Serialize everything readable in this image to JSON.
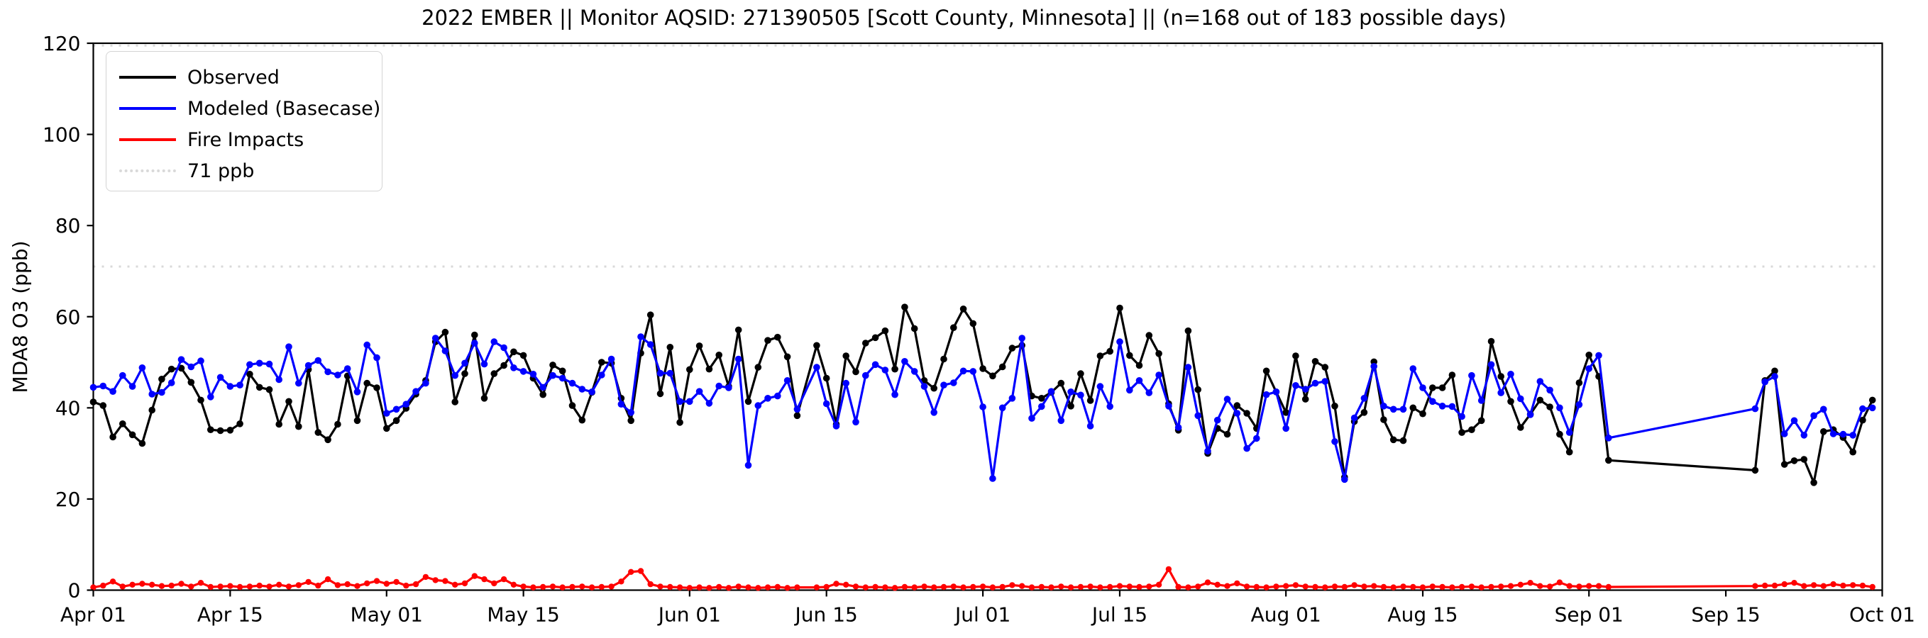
{
  "header": {
    "title": "2022 EMBER || Monitor AQSID: 271390505 [Scott County, Minnesota] || (n=168 out of 183 possible days)"
  },
  "chart_data": {
    "type": "line",
    "title": "2022 EMBER || Monitor AQSID: 271390505 [Scott County, Minnesota] || (n=168 out of 183 possible days)",
    "ylabel": "MDA8 O3 (ppb)",
    "ylim": [
      0,
      120
    ],
    "xlim_days": [
      0,
      183
    ],
    "grid": false,
    "legend_position": "upper-left",
    "note": "n=168 out of 183 possible days",
    "y_ticks": [
      0,
      20,
      40,
      60,
      80,
      100,
      120
    ],
    "x_ticks": [
      {
        "label": "Apr 01",
        "day": 0
      },
      {
        "label": "Apr 15",
        "day": 14
      },
      {
        "label": "May 01",
        "day": 30
      },
      {
        "label": "May 15",
        "day": 44
      },
      {
        "label": "Jun 01",
        "day": 61
      },
      {
        "label": "Jun 15",
        "day": 75
      },
      {
        "label": "Jul 01",
        "day": 91
      },
      {
        "label": "Jul 15",
        "day": 105
      },
      {
        "label": "Aug 01",
        "day": 122
      },
      {
        "label": "Aug 15",
        "day": 136
      },
      {
        "label": "Sep 01",
        "day": 153
      },
      {
        "label": "Sep 15",
        "day": 167
      },
      {
        "label": "Oct 01",
        "day": 183
      }
    ],
    "ref_lines": [
      {
        "value": 71,
        "label": "71 ppb",
        "color": "#d9d9d9",
        "style": "dotted"
      },
      {
        "value": 119.5,
        "label": "",
        "color": "#d9d9d9",
        "style": "dotted"
      }
    ],
    "legend": [
      {
        "label": "Observed",
        "color": "#000000",
        "style": "solid"
      },
      {
        "label": "Modeled (Basecase)",
        "color": "#0000ff",
        "style": "solid"
      },
      {
        "label": "Fire Impacts",
        "color": "#ff0000",
        "style": "solid"
      },
      {
        "label": "71 ppb",
        "color": "#d9d9d9",
        "style": "dotted"
      }
    ],
    "series": [
      {
        "name": "Observed",
        "color": "#000000",
        "values": [
          41.3,
          40.5,
          33.6,
          36.5,
          34.1,
          32.2,
          39.5,
          46.3,
          48.5,
          48.7,
          45.6,
          41.7,
          35.2,
          35,
          35.1,
          36.5,
          47.4,
          44.5,
          44,
          36.4,
          41.4,
          35.9,
          48.4,
          34.6,
          33,
          36.4,
          47,
          37.2,
          45.4,
          44.4,
          35.5,
          37.2,
          39.9,
          43,
          46,
          54.5,
          56.6,
          41.3,
          47.5,
          56,
          42.1,
          47.5,
          49.3,
          52.3,
          51.5,
          46.5,
          42.9,
          49.4,
          48.1,
          40.5,
          37.3,
          43.4,
          50,
          49.8,
          42.1,
          37.2,
          52,
          60.4,
          43.1,
          53.3,
          36.8,
          48.4,
          53.6,
          48.5,
          51.6,
          44.7,
          57.1,
          41.4,
          48.9,
          54.8,
          55.5,
          51.2,
          38.3,
          null,
          53.7,
          46.5,
          36.4,
          51.4,
          47.9,
          54.2,
          55.4,
          56.9,
          48.5,
          62.1,
          57.4,
          46,
          44.3,
          50.7,
          57.6,
          61.7,
          58.5,
          48.6,
          47,
          49,
          53.1,
          53.7,
          42.6,
          42.1,
          43.4,
          45.4,
          40.4,
          47.5,
          41.6,
          51.4,
          52.4,
          61.9,
          51.5,
          49.3,
          55.9,
          51.9,
          40.9,
          35.1,
          56.9,
          44,
          30,
          35.5,
          34.2,
          40.5,
          38.8,
          35.5,
          48.1,
          43.5,
          39,
          51.4,
          41.9,
          50.2,
          48.9,
          40.4,
          24.8,
          37,
          39,
          50.1,
          37.4,
          33,
          32.8,
          40,
          38.7,
          44.4,
          44.4,
          47.2,
          34.6,
          35.2,
          37.2,
          54.6,
          46.9,
          41.4,
          35.7,
          38.6,
          41.7,
          40.2,
          34.2,
          30.3,
          45.5,
          51.6,
          46.9,
          28.5,
          null,
          null,
          null,
          null,
          null,
          null,
          null,
          null,
          null,
          null,
          null,
          null,
          null,
          null,
          26.3,
          46,
          48.1,
          27.6,
          28.4,
          28.7,
          23.6,
          34.8,
          35.2,
          33.5,
          30.3,
          37.3,
          41.7
        ]
      },
      {
        "name": "Modeled (Basecase)",
        "color": "#0000ff",
        "values": [
          44.5,
          44.8,
          43.6,
          47.1,
          44.7,
          48.8,
          43,
          43.4,
          45.5,
          50.6,
          49,
          50.3,
          42.4,
          46.7,
          44.7,
          45,
          49.5,
          49.8,
          49.6,
          46.2,
          53.4,
          45.4,
          49.3,
          50.4,
          47.9,
          47.2,
          48.6,
          43.5,
          53.8,
          51,
          38.8,
          39.7,
          40.8,
          43.6,
          45.4,
          55.3,
          52.5,
          47.1,
          49.8,
          54.2,
          49.6,
          54.5,
          53.2,
          48.8,
          48,
          47.4,
          44.5,
          47.1,
          46.5,
          45.4,
          44.1,
          43.5,
          47.2,
          50.7,
          40.8,
          39,
          55.6,
          53.9,
          47.6,
          47.6,
          41.4,
          41.4,
          43.6,
          41,
          44.8,
          44.4,
          50.7,
          27.4,
          40.5,
          42.1,
          42.6,
          46,
          39.7,
          null,
          48.9,
          40.9,
          36,
          45.4,
          36.9,
          47.1,
          49.5,
          48.3,
          42.9,
          50.2,
          48,
          44.7,
          39,
          45,
          45.5,
          48.1,
          48,
          40.2,
          24.5,
          40,
          42.1,
          55.3,
          37.7,
          40.3,
          43.6,
          37.2,
          43.5,
          42.8,
          36,
          44.7,
          40.3,
          54.5,
          43.9,
          46,
          43.3,
          47.2,
          40.4,
          35.7,
          48.9,
          38.3,
          30.5,
          37.3,
          41.9,
          38.8,
          31.1,
          33.3,
          42.9,
          43.5,
          35.5,
          44.9,
          44.1,
          45.4,
          45.8,
          32.6,
          24.3,
          37.8,
          42.1,
          49.1,
          40.4,
          39.7,
          39.7,
          48.6,
          44.4,
          41.4,
          40.4,
          40.3,
          38.1,
          47.1,
          41.6,
          49.5,
          43.3,
          47.4,
          42,
          38.5,
          45.8,
          43.9,
          40,
          34.6,
          40.7,
          48.6,
          51.5,
          33.4,
          null,
          null,
          null,
          null,
          null,
          null,
          null,
          null,
          null,
          null,
          null,
          null,
          null,
          null,
          39.8,
          45.7,
          46.9,
          34.3,
          37.2,
          34,
          38.3,
          39.7,
          34.3,
          34.2,
          34,
          39.8,
          40
        ]
      },
      {
        "name": "Fire Impacts",
        "color": "#ff0000",
        "values": [
          0.6,
          1,
          1.9,
          0.8,
          1.2,
          1.4,
          1.2,
          0.9,
          1,
          1.4,
          0.8,
          1.6,
          0.7,
          0.8,
          0.9,
          0.7,
          0.8,
          1,
          0.8,
          1.2,
          0.8,
          1.1,
          1.8,
          1,
          2.4,
          1.1,
          1.3,
          0.9,
          1.5,
          2,
          1.4,
          1.8,
          1,
          1.3,
          2.9,
          2.2,
          2,
          1.2,
          1.5,
          3.1,
          2.4,
          1.5,
          2.4,
          1.2,
          0.8,
          0.6,
          0.7,
          0.8,
          0.6,
          0.7,
          0.8,
          0.6,
          0.7,
          0.8,
          1.9,
          4,
          4.2,
          1.3,
          0.8,
          0.7,
          0.6,
          0.5,
          0.6,
          0.5,
          0.7,
          0.5,
          0.8,
          0.6,
          0.5,
          0.6,
          0.7,
          0.5,
          0.6,
          null,
          0.6,
          0.7,
          1.4,
          1.2,
          0.8,
          0.6,
          0.7,
          0.6,
          0.5,
          0.7,
          0.6,
          0.8,
          0.6,
          0.7,
          0.8,
          0.6,
          0.7,
          0.8,
          0.6,
          0.7,
          1.1,
          0.9,
          0.6,
          0.7,
          0.6,
          0.8,
          0.6,
          0.7,
          0.8,
          0.6,
          0.7,
          0.9,
          0.8,
          0.7,
          0.8,
          1.2,
          4.6,
          0.7,
          0.6,
          0.8,
          1.7,
          1.2,
          0.9,
          1.5,
          0.8,
          0.7,
          0.6,
          0.8,
          0.9,
          1.1,
          0.8,
          0.7,
          0.6,
          0.8,
          0.7,
          1.1,
          0.8,
          0.9,
          0.7,
          0.6,
          0.8,
          0.7,
          0.6,
          0.8,
          0.7,
          0.6,
          0.7,
          0.8,
          0.6,
          0.7,
          0.8,
          0.9,
          1.2,
          1.6,
          0.9,
          0.8,
          1.7,
          0.9,
          0.8,
          0.9,
          0.9,
          0.7,
          null,
          null,
          null,
          null,
          null,
          null,
          null,
          null,
          null,
          null,
          null,
          null,
          null,
          null,
          0.9,
          1,
          1,
          1.3,
          1.6,
          0.9,
          1.1,
          0.9,
          1.3,
          1,
          1.1,
          1,
          0.7
        ]
      }
    ]
  }
}
